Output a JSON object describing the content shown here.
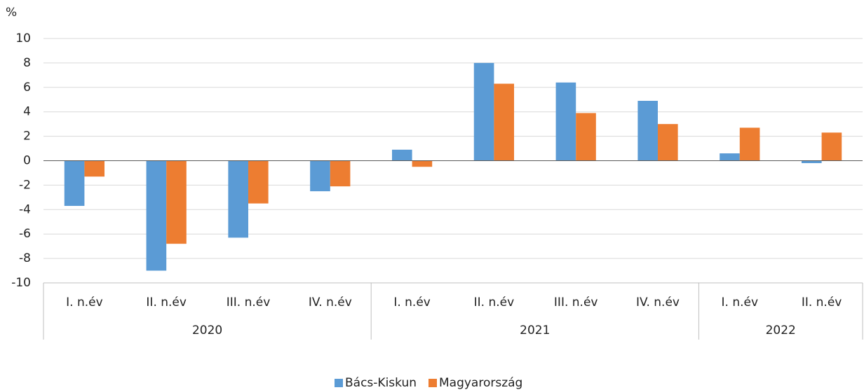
{
  "chart_data": {
    "type": "bar",
    "y_label": "%",
    "years": [
      {
        "label": "2020",
        "quarters": [
          "I. n.év",
          "II. n.év",
          "III. n.év",
          "IV. n.év"
        ]
      },
      {
        "label": "2021",
        "quarters": [
          "I. n.év",
          "II. n.év",
          "III. n.év",
          "IV. n.év"
        ]
      },
      {
        "label": "2022",
        "quarters": [
          "I. n.év",
          "II. n.év"
        ]
      }
    ],
    "series": [
      {
        "name": "Bács-Kiskun",
        "color": "#5b9bd5",
        "values": [
          -3.7,
          -9.0,
          -6.3,
          -2.5,
          0.9,
          8.0,
          6.4,
          4.9,
          0.6,
          -0.2
        ]
      },
      {
        "name": "Magyarország",
        "color": "#ed7d31",
        "values": [
          -1.3,
          -6.8,
          -3.5,
          -2.1,
          -0.5,
          6.3,
          3.9,
          3.0,
          2.7,
          2.3
        ]
      }
    ],
    "ylim": [
      -10,
      10
    ],
    "yticks": [
      -10,
      -8,
      -6,
      -4,
      -2,
      0,
      2,
      4,
      6,
      8,
      10
    ],
    "grid": true,
    "legend": "bottom"
  }
}
